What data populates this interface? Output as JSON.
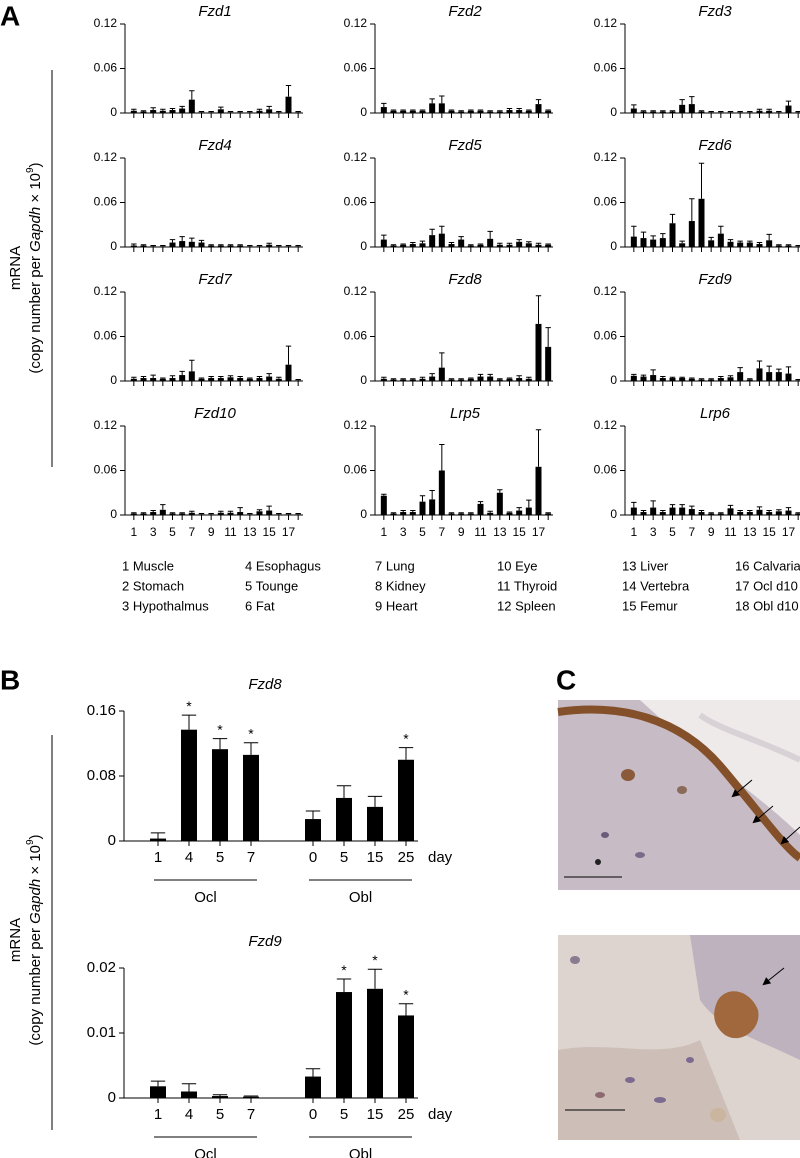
{
  "panel_labels": [
    "A",
    "B",
    "C"
  ],
  "y_label": {
    "line1": "mRNA",
    "start": "(copy number per ",
    "gene": "Gapdh",
    "mid": " × 10",
    "exponent": "9",
    "end": ")"
  },
  "tissues": [
    "1 Muscle",
    "2 Stomach",
    "3 Hypothalmus",
    "4 Esophagus",
    "5 Tounge",
    "6 Fat",
    "7 Lung",
    "8 Kidney",
    "9 Heart",
    "10 Eye",
    "11 Thyroid",
    "12 Spleen",
    "13 Liver",
    "14 Vertebra",
    "15 Femur",
    "16 Calvaria",
    "17 Ocl d10",
    "18 Obl d10"
  ],
  "x_unit": "day",
  "chart_data": [
    {
      "type": "bar",
      "title": "Fzd1",
      "ylim": [
        0,
        0.12
      ],
      "yticks": [
        0,
        0.06,
        0.12
      ],
      "values": [
        0.003,
        0.002,
        0.004,
        0.003,
        0.004,
        0.006,
        0.018,
        0.001,
        0.001,
        0.005,
        0.001,
        0.001,
        0.001,
        0.003,
        0.005,
        0.001,
        0.022,
        0.001
      ],
      "errors": [
        0.002,
        0.001,
        0.003,
        0.002,
        0.002,
        0.003,
        0.012,
        0.001,
        0.001,
        0.003,
        0.001,
        0.001,
        0.001,
        0.002,
        0.004,
        0.001,
        0.015,
        0.001
      ]
    },
    {
      "type": "bar",
      "title": "Fzd2",
      "ylim": [
        0,
        0.12
      ],
      "yticks": [
        0,
        0.06,
        0.12
      ],
      "values": [
        0.008,
        0.003,
        0.003,
        0.003,
        0.003,
        0.013,
        0.013,
        0.003,
        0.002,
        0.003,
        0.003,
        0.002,
        0.002,
        0.004,
        0.004,
        0.003,
        0.012,
        0.003
      ],
      "errors": [
        0.005,
        0.001,
        0.001,
        0.001,
        0.001,
        0.006,
        0.01,
        0.001,
        0.001,
        0.001,
        0.001,
        0.001,
        0.001,
        0.002,
        0.002,
        0.001,
        0.006,
        0.001
      ]
    },
    {
      "type": "bar",
      "title": "Fzd3",
      "ylim": [
        0,
        0.12
      ],
      "yticks": [
        0,
        0.06,
        0.12
      ],
      "values": [
        0.006,
        0.002,
        0.002,
        0.002,
        0.002,
        0.011,
        0.012,
        0.002,
        0.001,
        0.001,
        0.001,
        0.001,
        0.001,
        0.003,
        0.003,
        0.001,
        0.01,
        0.001
      ],
      "errors": [
        0.005,
        0.001,
        0.001,
        0.001,
        0.001,
        0.007,
        0.01,
        0.001,
        0.001,
        0.001,
        0.001,
        0.001,
        0.001,
        0.002,
        0.002,
        0.001,
        0.006,
        0.001
      ]
    },
    {
      "type": "bar",
      "title": "Fzd4",
      "ylim": [
        0,
        0.12
      ],
      "yticks": [
        0,
        0.06,
        0.12
      ],
      "values": [
        0.002,
        0.002,
        0.001,
        0.001,
        0.006,
        0.008,
        0.007,
        0.006,
        0.002,
        0.002,
        0.002,
        0.002,
        0.001,
        0.001,
        0.003,
        0.001,
        0.001,
        0.001
      ],
      "errors": [
        0.002,
        0.001,
        0.001,
        0.001,
        0.004,
        0.006,
        0.005,
        0.003,
        0.001,
        0.001,
        0.001,
        0.001,
        0.001,
        0.001,
        0.002,
        0.001,
        0.001,
        0.001
      ]
    },
    {
      "type": "bar",
      "title": "Fzd5",
      "ylim": [
        0,
        0.12
      ],
      "yticks": [
        0,
        0.06,
        0.12
      ],
      "values": [
        0.01,
        0.002,
        0.003,
        0.004,
        0.005,
        0.016,
        0.018,
        0.004,
        0.01,
        0.002,
        0.003,
        0.011,
        0.003,
        0.003,
        0.007,
        0.005,
        0.003,
        0.003
      ],
      "errors": [
        0.006,
        0.001,
        0.001,
        0.002,
        0.003,
        0.008,
        0.01,
        0.002,
        0.004,
        0.001,
        0.001,
        0.01,
        0.002,
        0.002,
        0.003,
        0.002,
        0.002,
        0.001
      ]
    },
    {
      "type": "bar",
      "title": "Fzd6",
      "ylim": [
        0,
        0.12
      ],
      "yticks": [
        0,
        0.06,
        0.12
      ],
      "values": [
        0.014,
        0.012,
        0.01,
        0.012,
        0.032,
        0.005,
        0.035,
        0.065,
        0.009,
        0.018,
        0.007,
        0.006,
        0.006,
        0.004,
        0.009,
        0.002,
        0.002,
        0.001
      ],
      "errors": [
        0.014,
        0.008,
        0.005,
        0.006,
        0.012,
        0.003,
        0.03,
        0.048,
        0.004,
        0.01,
        0.003,
        0.002,
        0.002,
        0.002,
        0.008,
        0.001,
        0.001,
        0.001
      ]
    },
    {
      "type": "bar",
      "title": "Fzd7",
      "ylim": [
        0,
        0.12
      ],
      "yticks": [
        0,
        0.06,
        0.12
      ],
      "values": [
        0.003,
        0.004,
        0.004,
        0.003,
        0.004,
        0.008,
        0.013,
        0.003,
        0.004,
        0.004,
        0.005,
        0.004,
        0.003,
        0.004,
        0.006,
        0.003,
        0.022,
        0.001
      ],
      "errors": [
        0.002,
        0.002,
        0.004,
        0.001,
        0.003,
        0.005,
        0.015,
        0.001,
        0.002,
        0.002,
        0.002,
        0.002,
        0.001,
        0.002,
        0.004,
        0.002,
        0.025,
        0.001
      ]
    },
    {
      "type": "bar",
      "title": "Fzd8",
      "ylim": [
        0,
        0.12
      ],
      "yticks": [
        0,
        0.06,
        0.12
      ],
      "values": [
        0.003,
        0.002,
        0.002,
        0.002,
        0.003,
        0.006,
        0.018,
        0.002,
        0.002,
        0.003,
        0.006,
        0.006,
        0.002,
        0.003,
        0.004,
        0.003,
        0.077,
        0.046
      ],
      "errors": [
        0.002,
        0.001,
        0.001,
        0.001,
        0.002,
        0.004,
        0.02,
        0.001,
        0.001,
        0.001,
        0.003,
        0.003,
        0.001,
        0.001,
        0.003,
        0.002,
        0.038,
        0.026
      ]
    },
    {
      "type": "bar",
      "title": "Fzd9",
      "ylim": [
        0,
        0.12
      ],
      "yticks": [
        0,
        0.06,
        0.12
      ],
      "values": [
        0.007,
        0.006,
        0.008,
        0.004,
        0.004,
        0.004,
        0.003,
        0.002,
        0.002,
        0.004,
        0.005,
        0.012,
        0.002,
        0.017,
        0.012,
        0.012,
        0.01,
        0.001
      ],
      "errors": [
        0.002,
        0.002,
        0.007,
        0.002,
        0.001,
        0.001,
        0.001,
        0.001,
        0.001,
        0.002,
        0.002,
        0.006,
        0.001,
        0.01,
        0.008,
        0.004,
        0.009,
        0.001
      ]
    },
    {
      "type": "bar",
      "title": "Fzd10",
      "ylim": [
        0,
        0.12
      ],
      "yticks": [
        0,
        0.06,
        0.12
      ],
      "categories": [
        "1",
        null,
        "3",
        null,
        "5",
        null,
        "7",
        null,
        "9",
        null,
        "11",
        null,
        "13",
        null,
        "15",
        null,
        "17",
        null
      ],
      "values": [
        0.002,
        0.002,
        0.004,
        0.007,
        0.002,
        0.002,
        0.003,
        0.001,
        0.001,
        0.003,
        0.003,
        0.004,
        0.001,
        0.005,
        0.006,
        0.001,
        0.001,
        0.001
      ],
      "errors": [
        0.001,
        0.001,
        0.002,
        0.007,
        0.001,
        0.001,
        0.002,
        0.001,
        0.001,
        0.002,
        0.002,
        0.006,
        0.001,
        0.002,
        0.006,
        0.001,
        0.001,
        0.001
      ]
    },
    {
      "type": "bar",
      "title": "Lrp5",
      "ylim": [
        0,
        0.12
      ],
      "yticks": [
        0,
        0.06,
        0.12
      ],
      "categories": [
        "1",
        null,
        "3",
        null,
        "5",
        null,
        "7",
        null,
        "9",
        null,
        "11",
        null,
        "13",
        null,
        "15",
        null,
        "17",
        null
      ],
      "values": [
        0.026,
        0.002,
        0.004,
        0.004,
        0.018,
        0.021,
        0.06,
        0.002,
        0.002,
        0.002,
        0.015,
        0.003,
        0.03,
        0.003,
        0.006,
        0.01,
        0.065,
        0.002
      ],
      "errors": [
        0.002,
        0.001,
        0.002,
        0.002,
        0.008,
        0.012,
        0.035,
        0.001,
        0.001,
        0.001,
        0.003,
        0.002,
        0.004,
        0.001,
        0.004,
        0.01,
        0.05,
        0.001
      ]
    },
    {
      "type": "bar",
      "title": "Lrp6",
      "ylim": [
        0,
        0.12
      ],
      "yticks": [
        0,
        0.06,
        0.12
      ],
      "categories": [
        "1",
        null,
        "3",
        null,
        "5",
        null,
        "7",
        null,
        "9",
        null,
        "11",
        null,
        "13",
        null,
        "15",
        null,
        "17",
        null
      ],
      "values": [
        0.01,
        0.004,
        0.01,
        0.004,
        0.01,
        0.01,
        0.008,
        0.004,
        0.002,
        0.002,
        0.009,
        0.004,
        0.004,
        0.007,
        0.004,
        0.005,
        0.006,
        0.002
      ],
      "errors": [
        0.007,
        0.002,
        0.009,
        0.002,
        0.004,
        0.004,
        0.004,
        0.002,
        0.001,
        0.001,
        0.004,
        0.002,
        0.002,
        0.004,
        0.002,
        0.002,
        0.004,
        0.001
      ]
    },
    {
      "type": "bar",
      "title": "Fzd8",
      "ylim": [
        0,
        0.16
      ],
      "yticks": [
        0,
        0.08,
        0.16
      ],
      "categories": [
        "1",
        "4",
        "5",
        "7",
        "0",
        "5",
        "15",
        "25"
      ],
      "groups": [
        "Ocl",
        "Obl"
      ],
      "values": [
        0.003,
        0.137,
        0.113,
        0.106,
        0.027,
        0.053,
        0.042,
        0.1
      ],
      "errors": [
        0.007,
        0.018,
        0.013,
        0.015,
        0.01,
        0.015,
        0.013,
        0.015
      ],
      "significance": [
        null,
        "*",
        "*",
        "*",
        null,
        null,
        null,
        "*"
      ]
    },
    {
      "type": "bar",
      "title": "Fzd9",
      "ylim": [
        0,
        0.02
      ],
      "yticks": [
        0,
        0.01,
        0.02
      ],
      "categories": [
        "1",
        "4",
        "5",
        "7",
        "0",
        "5",
        "15",
        "25"
      ],
      "groups": [
        "Ocl",
        "Obl"
      ],
      "values": [
        0.0018,
        0.001,
        0.0003,
        0.0002,
        0.0033,
        0.0163,
        0.0168,
        0.0127
      ],
      "errors": [
        0.0008,
        0.0012,
        0.0002,
        0.0001,
        0.0012,
        0.002,
        0.003,
        0.0018
      ],
      "significance": [
        null,
        null,
        null,
        null,
        null,
        "*",
        "*",
        "*"
      ]
    }
  ]
}
